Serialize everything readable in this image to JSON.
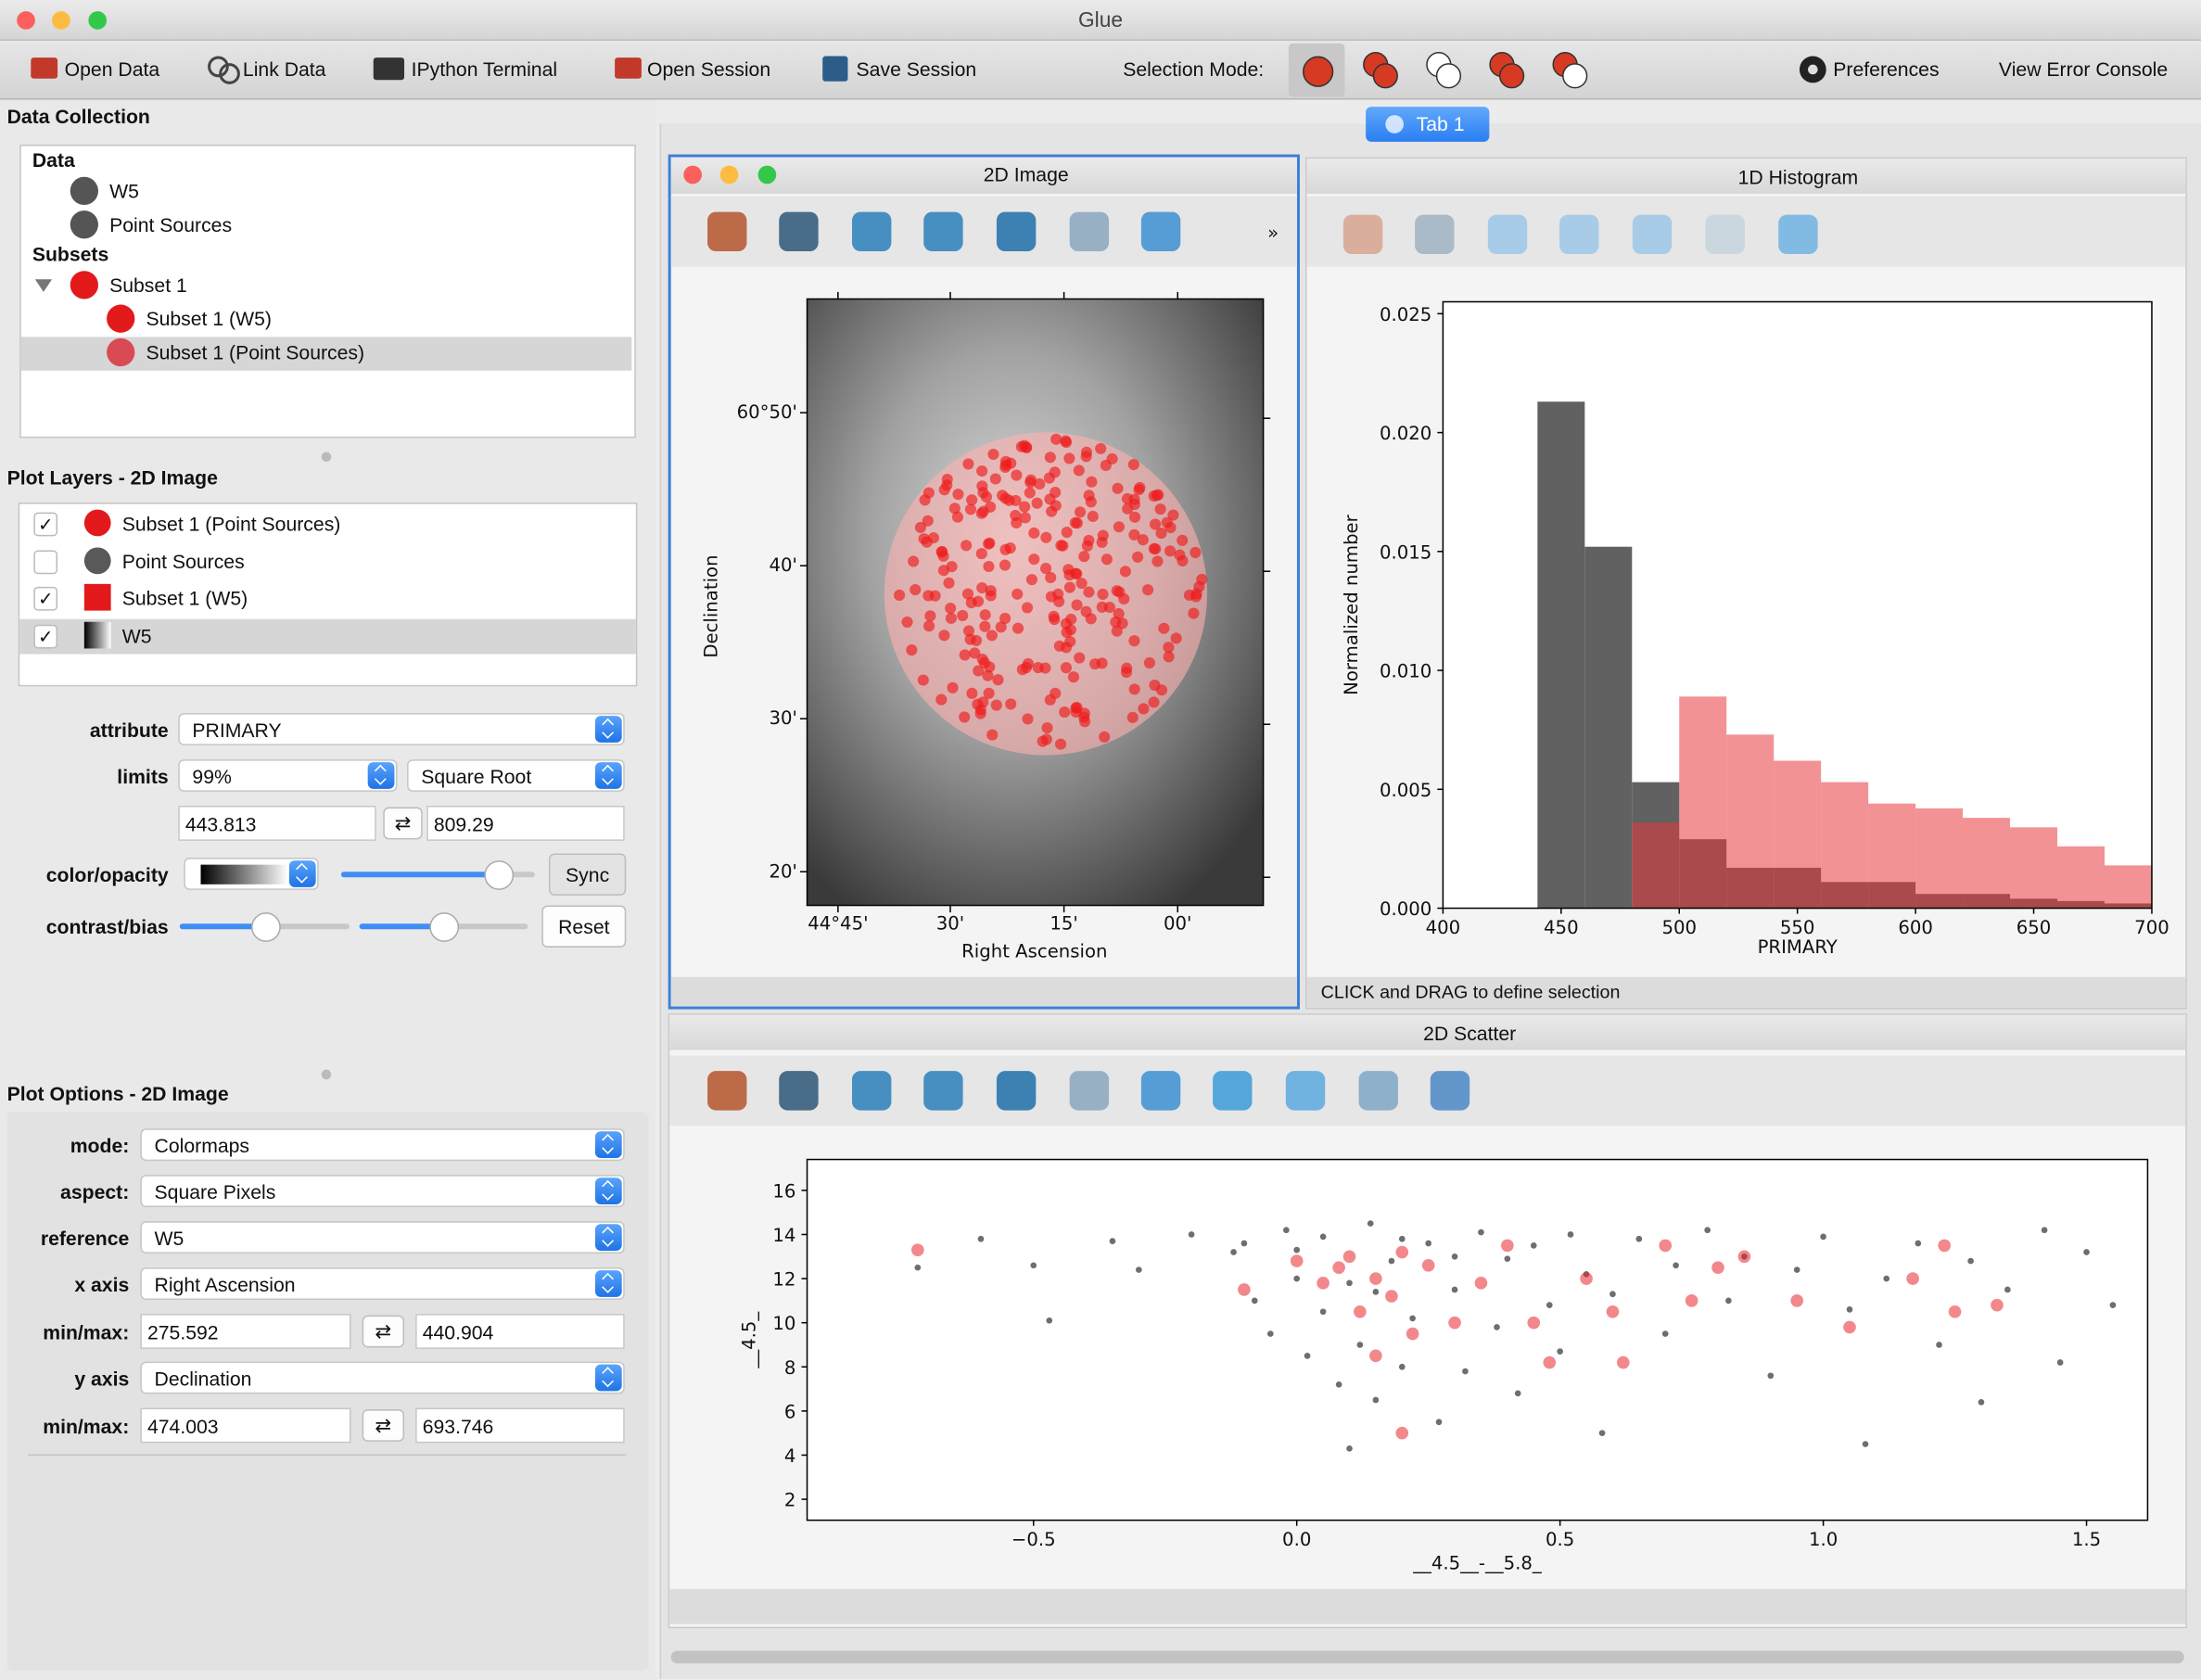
{
  "window": {
    "title": "Glue"
  },
  "toolbar": {
    "items": [
      "Open Data",
      "Link Data",
      "IPython Terminal",
      "Open Session",
      "Save Session"
    ],
    "selection_mode_label": "Selection Mode:",
    "preferences": "Preferences",
    "error_console": "View Error Console"
  },
  "tab": "Tab 1",
  "data_collection": {
    "title": "Data Collection",
    "data_header": "Data",
    "data": [
      "W5",
      "Point Sources"
    ],
    "subsets_header": "Subsets",
    "subset": "Subset 1",
    "subset_items": [
      "Subset 1 (W5)",
      "Subset 1 (Point Sources)"
    ]
  },
  "plot_layers": {
    "title": "Plot Layers - 2D Image",
    "layers": [
      {
        "name": "Subset 1 (Point Sources)",
        "checked": true,
        "icon": "circle",
        "color": "#e31a1c"
      },
      {
        "name": "Point Sources",
        "checked": false,
        "icon": "circle",
        "color": "#595959"
      },
      {
        "name": "Subset 1 (W5)",
        "checked": true,
        "icon": "square",
        "color": "#e31a1c"
      },
      {
        "name": "W5",
        "checked": true,
        "icon": "gradient",
        "color": "#000000"
      }
    ]
  },
  "layer_options": {
    "attribute_label": "attribute",
    "attribute": "PRIMARY",
    "limits_label": "limits",
    "percentile": "99%",
    "stretch": "Square Root",
    "min": "443.813",
    "max": "809.29",
    "color_label": "color/opacity",
    "sync": "Sync",
    "contrast_label": "contrast/bias",
    "reset": "Reset"
  },
  "plot_options": {
    "title": "Plot Options - 2D Image",
    "mode_label": "mode:",
    "mode": "Colormaps",
    "aspect_label": "aspect:",
    "aspect": "Square Pixels",
    "reference_label": "reference",
    "reference": "W5",
    "x_axis_label": "x axis",
    "x_axis": "Right Ascension",
    "x_minmax_label": "min/max:",
    "x_min": "275.592",
    "x_max": "440.904",
    "y_axis_label": "y axis",
    "y_axis": "Declination",
    "y_minmax_label": "min/max:",
    "y_min": "474.003",
    "y_max": "693.746"
  },
  "image_viewer": {
    "title": "2D Image",
    "xlabel": "Right Ascension",
    "ylabel": "Declination",
    "xticks": [
      "44°45'",
      "30'",
      "15'",
      "00'"
    ],
    "yticks": [
      "60°50'",
      "40'",
      "30'",
      "20'"
    ]
  },
  "status_bar": "CLICK and DRAG to define selection",
  "chart_data": [
    {
      "type": "histogram",
      "title": "1D Histogram",
      "xlabel": "PRIMARY",
      "ylabel": "Normalized number",
      "bins": [
        440,
        460,
        480,
        500,
        520,
        540,
        560,
        580,
        600,
        620,
        640,
        660,
        680,
        700
      ],
      "series": [
        {
          "color": "#595959",
          "values": [
            0.0213,
            0.0152,
            0.0053,
            0.0029,
            0.0017,
            0.0017,
            0.0011,
            0.0011,
            0.0006,
            0.0006,
            0.0004,
            0.0003,
            0.0002
          ]
        },
        {
          "color": "#e8383c",
          "values": [
            0,
            0,
            0.0036,
            0.0089,
            0.0073,
            0.0062,
            0.0053,
            0.0044,
            0.0042,
            0.0038,
            0.0034,
            0.0026,
            0.0018
          ]
        }
      ],
      "xlim": [
        400,
        700
      ],
      "xticks": [
        400,
        450,
        500,
        550,
        600,
        650,
        700
      ],
      "ylim": [
        0,
        0.0255
      ],
      "yticks": [
        {
          "value": 0,
          "label": "0.000"
        },
        0.005,
        {
          "value": 0.01,
          "label": "0.010"
        },
        0.015,
        {
          "value": 0.02,
          "label": "0.020"
        },
        0.025
      ]
    },
    {
      "type": "scatter",
      "title": "2D Scatter",
      "xlabel": "__4.5__-__5.8_",
      "ylabel": "__4.5_",
      "series": [
        {
          "color": "#555555",
          "x": [
            -0.72,
            -0.6,
            -0.5,
            -0.47,
            -0.35,
            -0.3,
            -0.2,
            -0.12,
            -0.08,
            -0.05,
            -0.02,
            0,
            0.02,
            0.05,
            0.05,
            0.08,
            0.1,
            0.12,
            0.14,
            0.15,
            0.18,
            0.2,
            0.22,
            0.25,
            0.27,
            0.3,
            0.32,
            0.35,
            0.38,
            0.4,
            0.42,
            0.45,
            0.48,
            0.5,
            0.52,
            0.55,
            0.58,
            0.6,
            0.65,
            0.7,
            0.72,
            0.78,
            0.82,
            0.85,
            0.9,
            0.95,
            1,
            1.05,
            1.08,
            1.12,
            1.18,
            1.22,
            1.28,
            1.3,
            1.35,
            1.42,
            1.45,
            1.5,
            1.55,
            0.1,
            -0.1,
            0,
            0.2,
            0.3,
            0.15
          ],
          "y": [
            12.5,
            13.8,
            12.6,
            10.1,
            13.7,
            12.4,
            14,
            13.2,
            11,
            9.5,
            14.2,
            12,
            8.5,
            10.5,
            13.9,
            7.2,
            11.8,
            9,
            14.5,
            6.5,
            12.8,
            8,
            10.2,
            13.6,
            5.5,
            11.5,
            7.8,
            14.1,
            9.8,
            12.9,
            6.8,
            13.5,
            10.8,
            8.7,
            14,
            12.2,
            5,
            11.3,
            13.8,
            9.5,
            12.6,
            14.2,
            11,
            13,
            7.6,
            12.4,
            13.9,
            10.6,
            4.5,
            12,
            13.6,
            9,
            12.8,
            6.4,
            11.5,
            14.2,
            8.2,
            13.2,
            10.8,
            4.3,
            13.6,
            13.3,
            13.8,
            13,
            11.4
          ]
        },
        {
          "color": "#e8272b",
          "x": [
            -0.72,
            -0.1,
            0,
            0.05,
            0.08,
            0.1,
            0.12,
            0.15,
            0.18,
            0.2,
            0.22,
            0.25,
            0.3,
            0.35,
            0.4,
            0.45,
            0.48,
            0.55,
            0.6,
            0.62,
            0.7,
            0.75,
            0.8,
            0.85,
            0.95,
            1.05,
            1.17,
            1.23,
            1.25,
            1.33,
            0.2,
            0.15
          ],
          "y": [
            13.3,
            11.5,
            12.8,
            11.8,
            12.5,
            13,
            10.5,
            12,
            11.2,
            13.2,
            9.5,
            12.6,
            10,
            11.8,
            13.5,
            10,
            8.2,
            12,
            10.5,
            8.2,
            13.5,
            11,
            12.5,
            13,
            11,
            9.8,
            12,
            13.5,
            10.5,
            10.8,
            5,
            8.5
          ]
        }
      ],
      "xlim": [
        -0.93,
        1.616
      ],
      "xticks": [
        {
          "value": -0.5,
          "label": "−0.5"
        },
        {
          "value": 0,
          "label": "0.0"
        },
        0.5,
        {
          "value": 1,
          "label": "1.0"
        },
        1.5
      ],
      "ylim": [
        1.05,
        17.4
      ],
      "yticks": [
        2,
        4,
        6,
        8,
        10,
        12,
        14,
        16
      ]
    }
  ]
}
